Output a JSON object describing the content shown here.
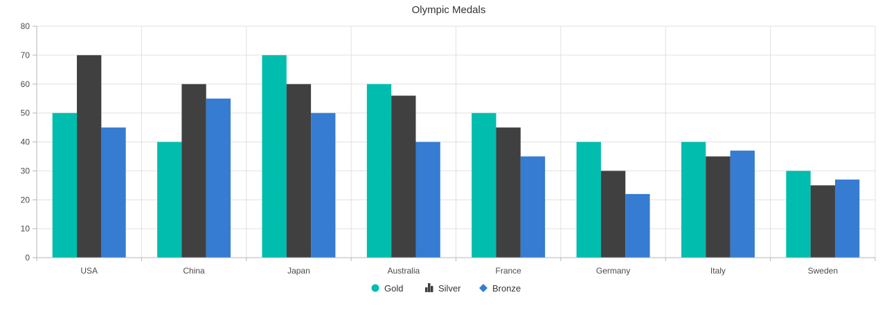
{
  "chart_data": {
    "type": "bar",
    "title": "Olympic Medals",
    "xlabel": "",
    "ylabel": "",
    "ylim": [
      0,
      80
    ],
    "y_ticks": [
      "0",
      "10",
      "20",
      "30",
      "40",
      "50",
      "60",
      "70",
      "80"
    ],
    "categories": [
      "USA",
      "China",
      "Japan",
      "Australia",
      "France",
      "Germany",
      "Italy",
      "Sweden"
    ],
    "series": [
      {
        "name": "Gold",
        "color": "#00bdae",
        "legend_icon": "circle-icon",
        "values": [
          50,
          40,
          70,
          60,
          50,
          40,
          40,
          30
        ]
      },
      {
        "name": "Silver",
        "color": "#404041",
        "legend_icon": "bar-chart-icon",
        "values": [
          70,
          60,
          60,
          56,
          45,
          30,
          35,
          25
        ]
      },
      {
        "name": "Bronze",
        "color": "#357cd2",
        "legend_icon": "diamond-icon",
        "values": [
          45,
          55,
          50,
          40,
          35,
          22,
          37,
          27
        ]
      }
    ],
    "grid": true,
    "legend_position": "bottom"
  }
}
